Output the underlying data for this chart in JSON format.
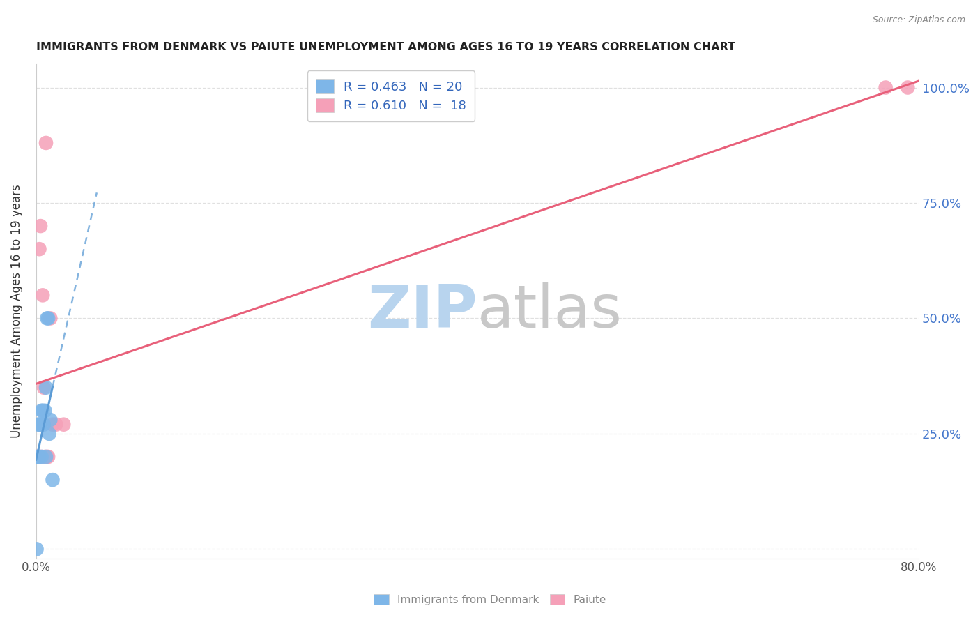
{
  "title": "IMMIGRANTS FROM DENMARK VS PAIUTE UNEMPLOYMENT AMONG AGES 16 TO 19 YEARS CORRELATION CHART",
  "source": "Source: ZipAtlas.com",
  "ylabel": "Unemployment Among Ages 16 to 19 years",
  "xlim": [
    0.0,
    0.8
  ],
  "ylim": [
    -0.02,
    1.05
  ],
  "denmark_scatter_x": [
    0.0005,
    0.001,
    0.0015,
    0.002,
    0.002,
    0.003,
    0.003,
    0.004,
    0.005,
    0.005,
    0.006,
    0.007,
    0.008,
    0.009,
    0.009,
    0.01,
    0.011,
    0.012,
    0.013,
    0.015
  ],
  "denmark_scatter_y": [
    0.0,
    0.2,
    0.2,
    0.2,
    0.27,
    0.2,
    0.27,
    0.27,
    0.2,
    0.3,
    0.3,
    0.27,
    0.3,
    0.35,
    0.2,
    0.5,
    0.5,
    0.25,
    0.28,
    0.15
  ],
  "paiute_scatter_x": [
    0.001,
    0.002,
    0.003,
    0.003,
    0.004,
    0.005,
    0.006,
    0.007,
    0.008,
    0.009,
    0.01,
    0.011,
    0.013,
    0.015,
    0.018,
    0.025,
    0.77,
    0.79
  ],
  "paiute_scatter_y": [
    0.2,
    0.2,
    0.65,
    0.2,
    0.7,
    0.2,
    0.55,
    0.35,
    0.2,
    0.88,
    0.2,
    0.2,
    0.5,
    0.27,
    0.27,
    0.27,
    1.0,
    1.0
  ],
  "denmark_color": "#7EB6E8",
  "paiute_color": "#F5A0B8",
  "dk_line_color": "#5B9BD5",
  "pa_line_color": "#E8607A",
  "background_color": "#ffffff",
  "grid_color": "#e0e0e0",
  "watermark_zip_color": "#B8D4EE",
  "watermark_atlas_color": "#C8C8C8"
}
